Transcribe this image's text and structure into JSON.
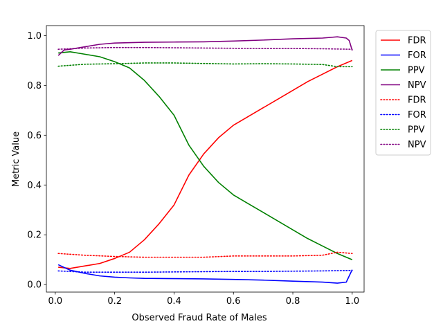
{
  "chart_data": {
    "type": "line",
    "title": "",
    "xlabel": "Observed Fraud Rate of Males",
    "ylabel": "Metric Value",
    "xlim": [
      -0.03,
      1.04
    ],
    "ylim": [
      -0.03,
      1.04
    ],
    "xticks": [
      0.0,
      0.2,
      0.4,
      0.6,
      0.8,
      1.0
    ],
    "xtick_labels": [
      "0.0",
      "0.2",
      "0.4",
      "0.6",
      "0.8",
      "1.0"
    ],
    "yticks": [
      0.0,
      0.2,
      0.4,
      0.6,
      0.8,
      1.0
    ],
    "ytick_labels": [
      "0.0",
      "0.2",
      "0.4",
      "0.6",
      "0.8",
      "1.0"
    ],
    "grid": false,
    "legend_position": "outside-right-top",
    "series": [
      {
        "name": "FDR",
        "color": "#ff0000",
        "linestyle": "solid",
        "x": [
          0.01,
          0.05,
          0.1,
          0.15,
          0.2,
          0.25,
          0.3,
          0.35,
          0.4,
          0.45,
          0.5,
          0.55,
          0.6,
          0.65,
          0.7,
          0.75,
          0.8,
          0.85,
          0.9,
          0.95,
          1.0
        ],
        "y": [
          0.07,
          0.065,
          0.075,
          0.085,
          0.105,
          0.13,
          0.18,
          0.245,
          0.32,
          0.44,
          0.525,
          0.59,
          0.64,
          0.675,
          0.71,
          0.745,
          0.78,
          0.815,
          0.845,
          0.875,
          0.9
        ]
      },
      {
        "name": "FOR",
        "color": "#0000ff",
        "linestyle": "solid",
        "x": [
          0.01,
          0.05,
          0.1,
          0.15,
          0.2,
          0.25,
          0.3,
          0.4,
          0.5,
          0.6,
          0.7,
          0.8,
          0.9,
          0.95,
          0.98,
          1.0
        ],
        "y": [
          0.08,
          0.058,
          0.045,
          0.035,
          0.03,
          0.027,
          0.025,
          0.024,
          0.023,
          0.021,
          0.018,
          0.014,
          0.01,
          0.006,
          0.01,
          0.06
        ]
      },
      {
        "name": "PPV",
        "color": "#008000",
        "linestyle": "solid",
        "x": [
          0.01,
          0.05,
          0.1,
          0.15,
          0.2,
          0.25,
          0.3,
          0.35,
          0.4,
          0.45,
          0.5,
          0.55,
          0.6,
          0.65,
          0.7,
          0.75,
          0.8,
          0.85,
          0.9,
          0.95,
          1.0
        ],
        "y": [
          0.93,
          0.935,
          0.925,
          0.915,
          0.895,
          0.87,
          0.82,
          0.755,
          0.68,
          0.56,
          0.475,
          0.41,
          0.36,
          0.325,
          0.29,
          0.255,
          0.22,
          0.185,
          0.155,
          0.125,
          0.1
        ]
      },
      {
        "name": "NPV",
        "color": "#800080",
        "linestyle": "solid",
        "x": [
          0.01,
          0.03,
          0.05,
          0.1,
          0.15,
          0.2,
          0.3,
          0.4,
          0.5,
          0.6,
          0.7,
          0.8,
          0.9,
          0.95,
          0.98,
          0.99,
          1.0
        ],
        "y": [
          0.92,
          0.942,
          0.945,
          0.955,
          0.965,
          0.97,
          0.973,
          0.974,
          0.975,
          0.978,
          0.982,
          0.987,
          0.99,
          0.995,
          0.99,
          0.98,
          0.94
        ]
      },
      {
        "name": "FDR",
        "color": "#ff0000",
        "linestyle": "dotted",
        "x": [
          0.01,
          0.1,
          0.2,
          0.3,
          0.4,
          0.5,
          0.6,
          0.7,
          0.8,
          0.9,
          0.95,
          1.0
        ],
        "y": [
          0.125,
          0.118,
          0.113,
          0.11,
          0.11,
          0.11,
          0.115,
          0.115,
          0.115,
          0.118,
          0.13,
          0.125
        ]
      },
      {
        "name": "FOR",
        "color": "#0000ff",
        "linestyle": "dotted",
        "x": [
          0.01,
          0.1,
          0.2,
          0.3,
          0.4,
          0.5,
          0.6,
          0.7,
          0.8,
          0.9,
          1.0
        ],
        "y": [
          0.055,
          0.05,
          0.05,
          0.05,
          0.051,
          0.052,
          0.053,
          0.053,
          0.054,
          0.055,
          0.057
        ]
      },
      {
        "name": "PPV",
        "color": "#008000",
        "linestyle": "dotted",
        "x": [
          0.01,
          0.1,
          0.2,
          0.3,
          0.4,
          0.5,
          0.6,
          0.7,
          0.8,
          0.9,
          0.95,
          1.0
        ],
        "y": [
          0.877,
          0.885,
          0.887,
          0.89,
          0.89,
          0.888,
          0.886,
          0.887,
          0.886,
          0.884,
          0.875,
          0.875
        ]
      },
      {
        "name": "NPV",
        "color": "#800080",
        "linestyle": "dotted",
        "x": [
          0.01,
          0.1,
          0.2,
          0.3,
          0.4,
          0.5,
          0.6,
          0.7,
          0.8,
          0.9,
          1.0
        ],
        "y": [
          0.945,
          0.95,
          0.952,
          0.952,
          0.951,
          0.95,
          0.949,
          0.948,
          0.948,
          0.947,
          0.945
        ]
      }
    ]
  }
}
